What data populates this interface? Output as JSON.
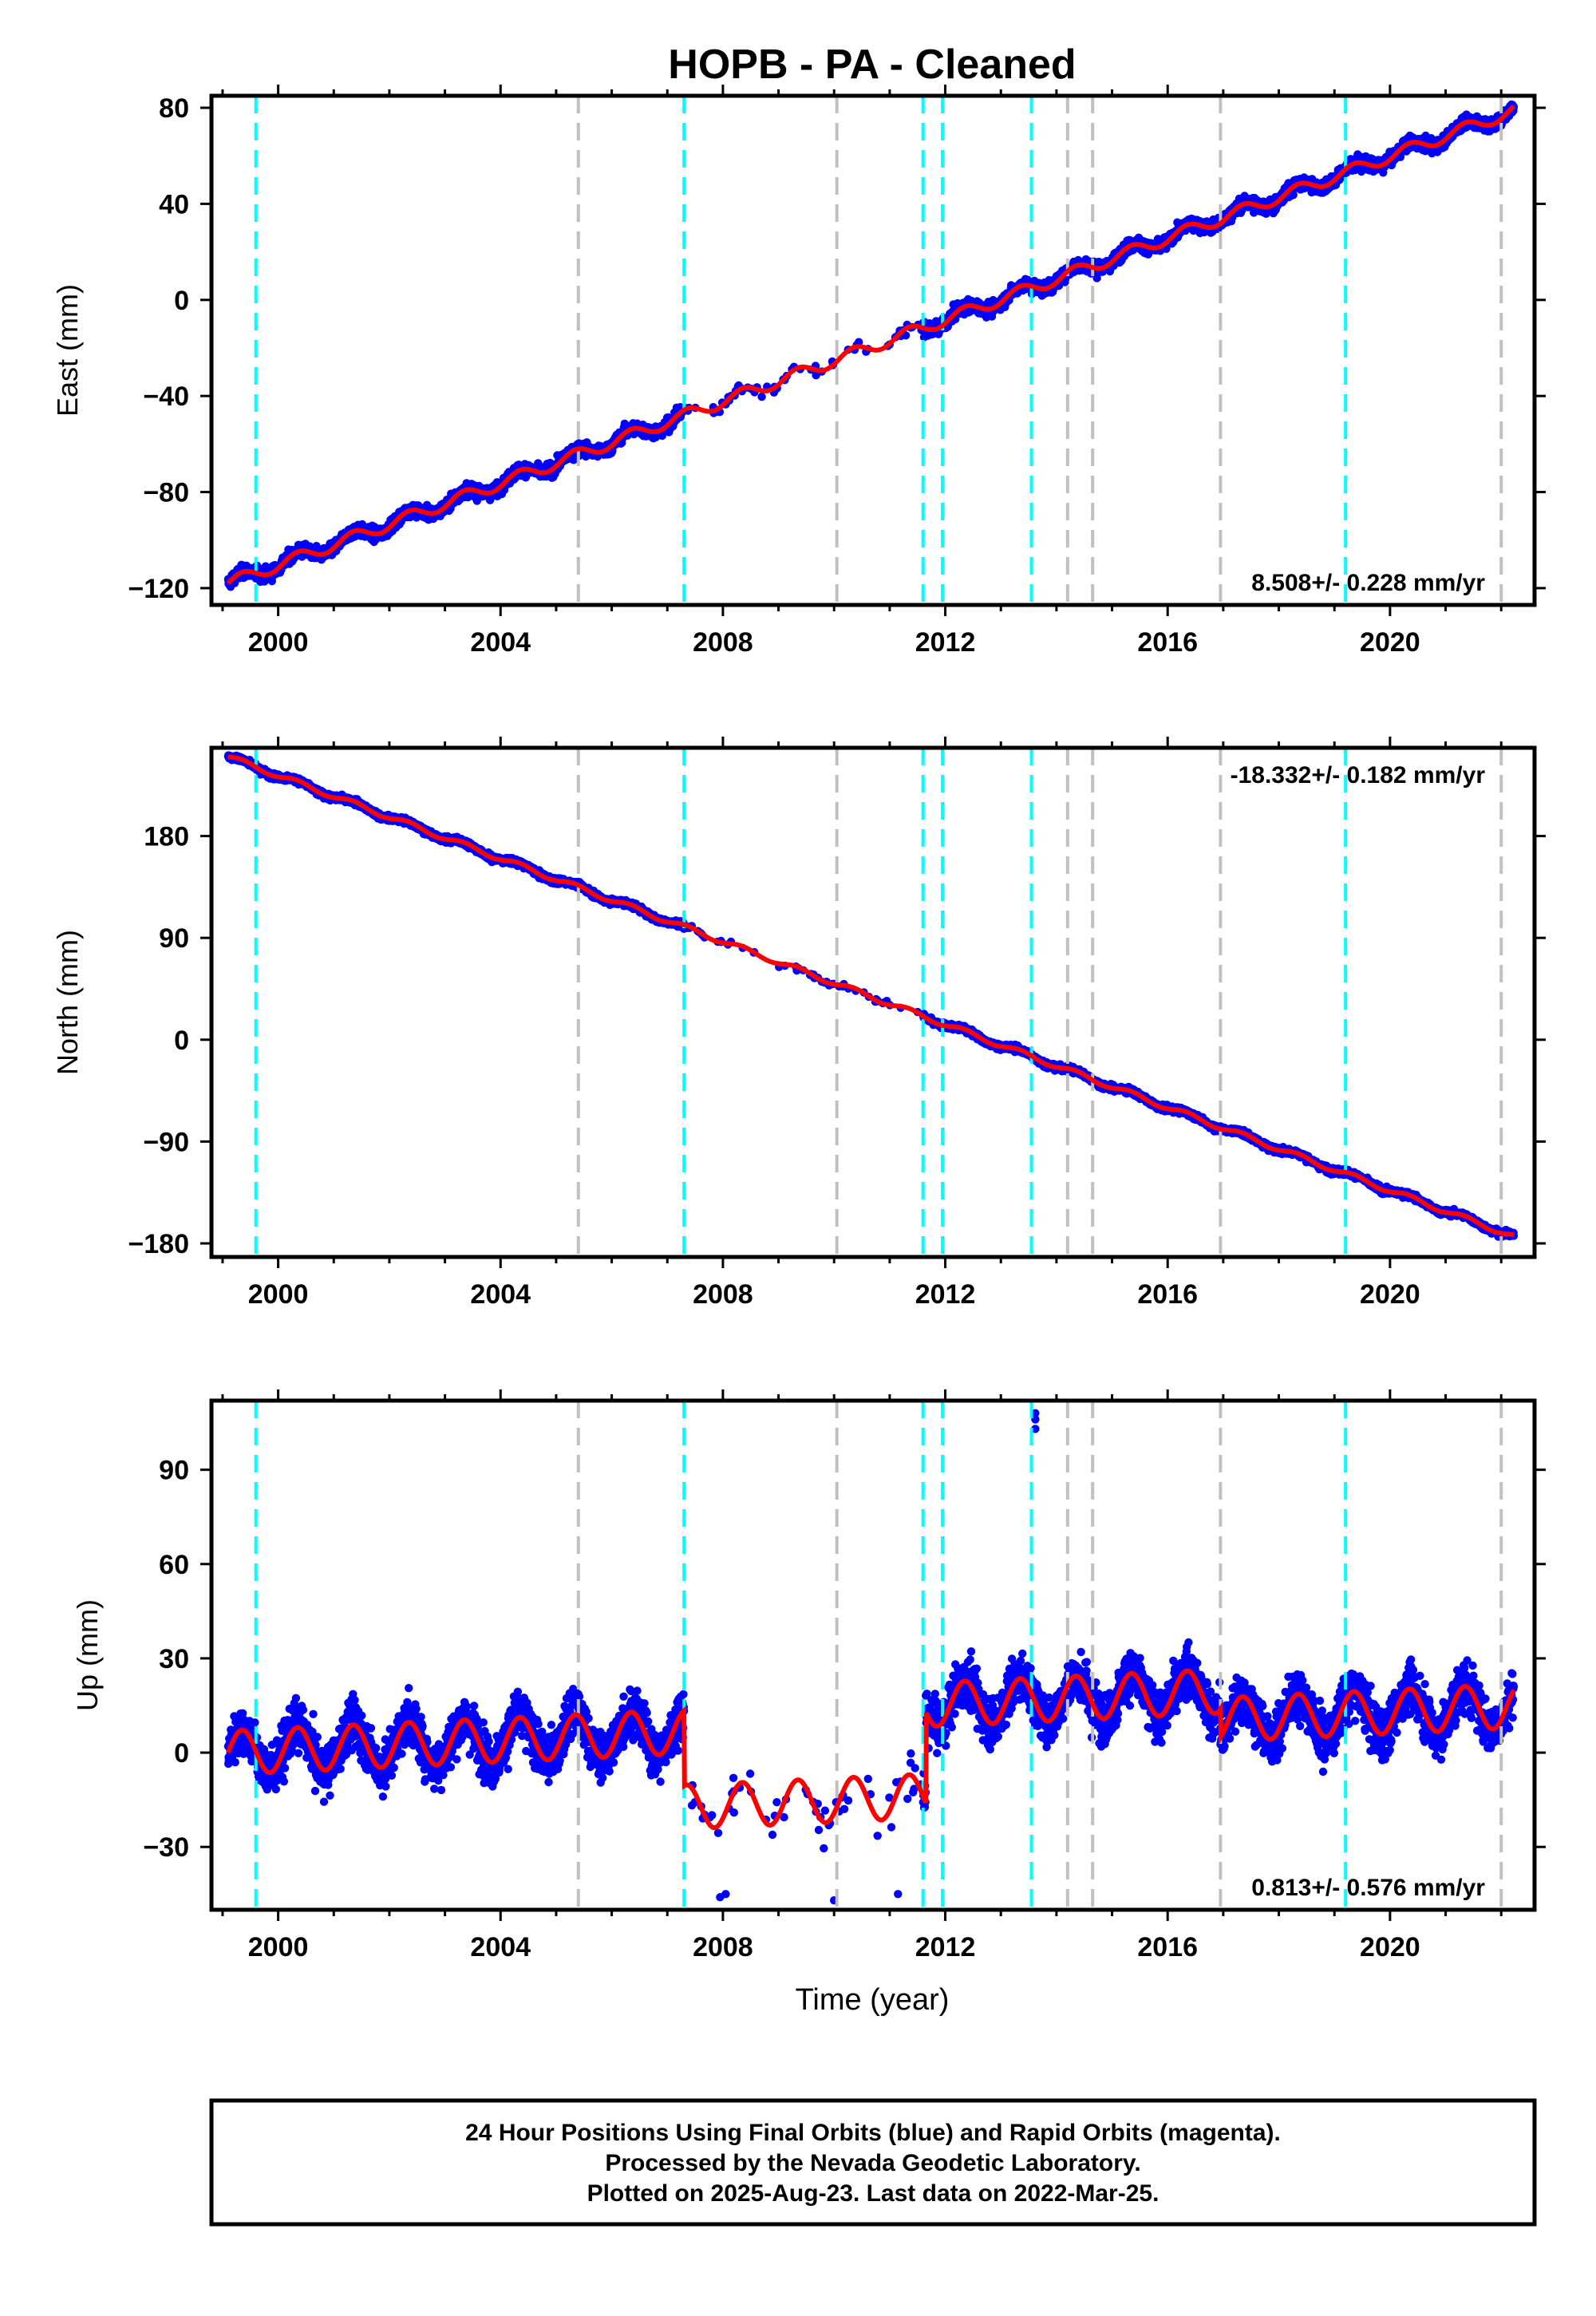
{
  "title": "HOPB  - PA - Cleaned",
  "colors": {
    "points": "#0000ff",
    "model": "#ff0000",
    "equipment_change": "#00ffff",
    "earthquake_offset": "#c0c0c0",
    "frame": "#000000"
  },
  "chart_data": [
    {
      "type": "scatter",
      "ylabel": "East (mm)",
      "xlim": [
        1998.8,
        2022.6
      ],
      "ylim": [
        -127,
        85
      ],
      "xticks": [
        2000,
        2004,
        2008,
        2012,
        2016,
        2020
      ],
      "yticks": [
        -120,
        -80,
        -40,
        0,
        40,
        80
      ],
      "rate_text": "8.508+/- 0.228 mm/yr",
      "rate_position": "bottom-right",
      "model": {
        "trend_start": -118,
        "slope": 8.508,
        "start_year": 1999.1,
        "end_year": 2022.23,
        "annual_amp": 2.5,
        "offsets": []
      }
    },
    {
      "type": "scatter",
      "ylabel": "North (mm)",
      "xlim": [
        1998.8,
        2022.6
      ],
      "ylim": [
        -192,
        258
      ],
      "xticks": [
        2000,
        2004,
        2008,
        2012,
        2016,
        2020
      ],
      "yticks": [
        -180,
        -90,
        0,
        90,
        180
      ],
      "rate_text": "-18.332+/- 0.182 mm/yr",
      "rate_position": "top-right",
      "model": {
        "trend_start": 250,
        "slope": -18.332,
        "start_year": 1999.1,
        "end_year": 2022.23,
        "annual_amp": 2.2,
        "offsets": []
      }
    },
    {
      "type": "scatter",
      "ylabel": "Up (mm)",
      "xlim": [
        1998.8,
        2022.6
      ],
      "ylim": [
        -50,
        112
      ],
      "xticks": [
        2000,
        2004,
        2008,
        2012,
        2016,
        2020
      ],
      "yticks": [
        -30,
        0,
        30,
        60,
        90
      ],
      "rate_text": "0.813+/- 0.576 mm/yr",
      "rate_position": "bottom-right",
      "outliers": [
        [
          2013.62,
          103
        ],
        [
          2013.62,
          106
        ],
        [
          2013.62,
          108
        ],
        [
          2007.95,
          -46
        ],
        [
          2008.05,
          -45
        ],
        [
          2010.0,
          -47
        ],
        [
          2011.15,
          -45
        ]
      ],
      "model": {
        "trend_start": 0,
        "slope": 0.813,
        "start_year": 1999.1,
        "end_year": 2022.23,
        "annual_amp": 7,
        "offsets": [
          [
            2007.3,
            -24
          ],
          [
            2011.65,
            29
          ],
          [
            2016.95,
            -9
          ]
        ]
      }
    }
  ],
  "xlabel": "Time (year)",
  "event_lines": {
    "equipment_change": [
      1999.6,
      2007.3,
      2011.6,
      2011.95,
      2013.55,
      2019.2
    ],
    "earthquake_offset": [
      2005.4,
      2010.05,
      2014.2,
      2014.65,
      2016.95,
      2022.0
    ]
  },
  "footer": {
    "line1": "24 Hour Positions Using Final Orbits (blue) and Rapid Orbits (magenta).",
    "line2": "Processed by the Nevada Geodetic Laboratory.",
    "line3": "Plotted on 2025-Aug-23. Last data on 2022-Mar-25."
  }
}
